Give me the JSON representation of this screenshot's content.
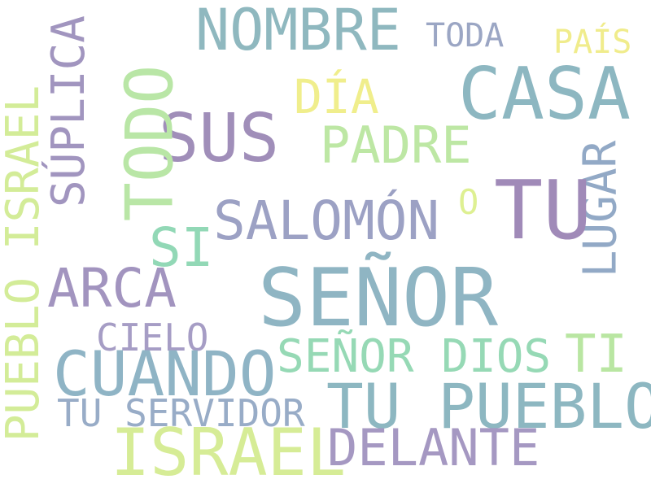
{
  "words": [
    {
      "text": "NOMBRE",
      "color": "#8fb8bf"
    },
    {
      "text": "TODA",
      "color": "#9ba6c4"
    },
    {
      "text": "PAÍS",
      "color": "#f0ec8c"
    },
    {
      "text": "CASA",
      "color": "#8db7c1"
    },
    {
      "text": "SUS",
      "color": "#a08eb9"
    },
    {
      "text": "TODO",
      "color": "#b9e6a6"
    },
    {
      "text": "SÚPLICA",
      "color": "#a195bf"
    },
    {
      "text": "DÍA",
      "color": "#f0ee8c"
    },
    {
      "text": "PADRE",
      "color": "#bde7a4"
    },
    {
      "text": "LUGAR",
      "color": "#92a9c6"
    },
    {
      "text": "PUEBLO ISRAEL",
      "color": "#d3ec98"
    },
    {
      "text": "TU",
      "color": "#a08ab8"
    },
    {
      "text": "SALOMÓN",
      "color": "#9ca1c4"
    },
    {
      "text": "O",
      "color": "#def092"
    },
    {
      "text": "SI",
      "color": "#92d8b6"
    },
    {
      "text": "ARCA",
      "color": "#a294bf"
    },
    {
      "text": "SEÑOR",
      "color": "#8fb5c3"
    },
    {
      "text": "CIELO",
      "color": "#a69dc5"
    },
    {
      "text": "SEÑOR DIOS",
      "color": "#96d9b5"
    },
    {
      "text": "TI",
      "color": "#b9e6a2"
    },
    {
      "text": "CUANDO",
      "color": "#8fb4c5"
    },
    {
      "text": "TU PUEBLO",
      "color": "#8db7c1"
    },
    {
      "text": "TU SERVIDOR",
      "color": "#98acc7"
    },
    {
      "text": "ISRAEL",
      "color": "#d6ec96"
    },
    {
      "text": "DELANTE",
      "color": "#a598c2"
    }
  ]
}
